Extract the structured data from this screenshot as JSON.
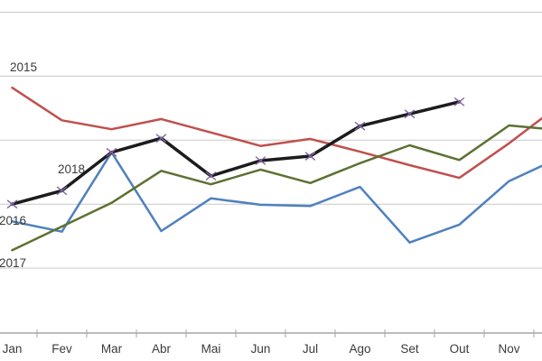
{
  "chart_data": {
    "type": "line",
    "title": "",
    "xlabel": "",
    "ylabel": "",
    "categories": [
      "Jan",
      "Fev",
      "Mar",
      "Abr",
      "Mai",
      "Jun",
      "Jul",
      "Ago",
      "Set",
      "Out",
      "Nov"
    ],
    "x_axis_note": "12th category (Dez) continues past the right crop edge; its label is not visible",
    "y_axis_note": "y-axis tick labels not visible; values given in gridline units above the x-axis",
    "ylim": [
      0,
      5.2
    ],
    "grid": "horizontal gridlines at units 1,2,3,4,5",
    "legend_position": "inline data labels near first points",
    "colors": {
      "gridline": "#c9c9c9",
      "axis": "#a6a6a6",
      "axis_text": "#3b3b3b"
    },
    "series": [
      {
        "name": "2015",
        "color": "#C0504D",
        "marker": "none",
        "values": [
          3.82,
          3.31,
          3.17,
          3.33,
          3.12,
          2.91,
          3.02,
          2.82,
          2.61,
          2.41,
          2.95,
          3.54
        ]
      },
      {
        "name": "2016",
        "color": "#4F81BD",
        "marker": "none",
        "values": [
          1.73,
          1.57,
          2.81,
          1.58,
          2.09,
          1.99,
          1.97,
          2.27,
          1.4,
          1.68,
          2.36,
          2.72
        ]
      },
      {
        "name": "2017",
        "color": "#5D7131",
        "marker": "none",
        "values": [
          1.28,
          1.65,
          2.02,
          2.52,
          2.31,
          2.54,
          2.33,
          2.64,
          2.92,
          2.69,
          3.23,
          3.16
        ]
      },
      {
        "name": "2018",
        "color": "#1C1C1C",
        "marker": "x",
        "marker_color": "#8064A2",
        "values": [
          2.0,
          2.21,
          2.81,
          3.03,
          2.44,
          2.68,
          2.75,
          3.22,
          3.41,
          3.6
        ]
      }
    ]
  }
}
